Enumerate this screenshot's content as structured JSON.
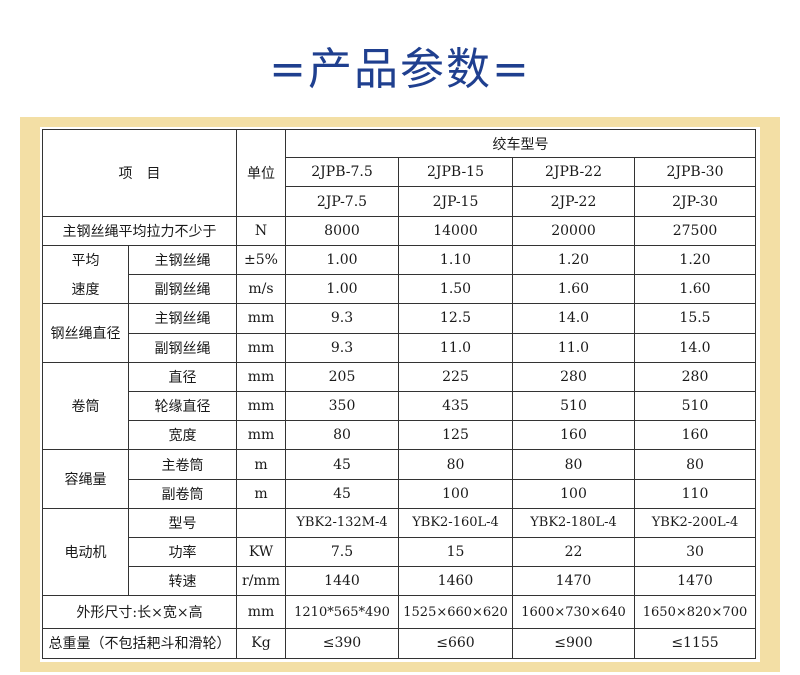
{
  "page": {
    "title": "=产品参数="
  },
  "table": {
    "item_header": "项　目",
    "unit_header": "单位",
    "model_group_header": "绞车型号",
    "models_row1": [
      "2JPB-7.5",
      "2JPB-15",
      "2JPB-22",
      "2JPB-30"
    ],
    "models_row2": [
      "2JP-7.5",
      "2JP-15",
      "2JP-22",
      "2JP-30"
    ],
    "rows": [
      {
        "group": "主钢丝绳平均拉力不少于",
        "sub": "",
        "unit": "N",
        "values": [
          "8000",
          "14000",
          "20000",
          "27500"
        ]
      },
      {
        "group": "平均",
        "sub": "主钢丝绳",
        "unit": "±5%",
        "values": [
          "1.00",
          "1.10",
          "1.20",
          "1.20"
        ]
      },
      {
        "group": "速度",
        "sub": "副钢丝绳",
        "unit": "m/s",
        "values": [
          "1.00",
          "1.50",
          "1.60",
          "1.60"
        ]
      },
      {
        "group": "钢丝绳直径",
        "sub": "主钢丝绳",
        "unit": "mm",
        "values": [
          "9.3",
          "12.5",
          "14.0",
          "15.5"
        ]
      },
      {
        "group": "",
        "sub": "副钢丝绳",
        "unit": "mm",
        "values": [
          "9.3",
          "11.0",
          "11.0",
          "14.0"
        ]
      },
      {
        "group": "卷筒",
        "sub": "直径",
        "unit": "mm",
        "values": [
          "205",
          "225",
          "280",
          "280"
        ]
      },
      {
        "group": "",
        "sub": "轮缘直径",
        "unit": "mm",
        "values": [
          "350",
          "435",
          "510",
          "510"
        ]
      },
      {
        "group": "",
        "sub": "宽度",
        "unit": "mm",
        "values": [
          "80",
          "125",
          "160",
          "160"
        ]
      },
      {
        "group": "容绳量",
        "sub": "主卷筒",
        "unit": "m",
        "values": [
          "45",
          "80",
          "80",
          "80"
        ]
      },
      {
        "group": "",
        "sub": "副卷筒",
        "unit": "m",
        "values": [
          "45",
          "100",
          "100",
          "110"
        ]
      },
      {
        "group": "电动机",
        "sub": "型号",
        "unit": "",
        "values": [
          "YBK2-132M-4",
          "YBK2-160L-4",
          "YBK2-180L-4",
          "YBK2-200L-4"
        ]
      },
      {
        "group": "",
        "sub": "功率",
        "unit": "KW",
        "values": [
          "7.5",
          "15",
          "22",
          "30"
        ]
      },
      {
        "group": "",
        "sub": "转速",
        "unit": "r/mm",
        "values": [
          "1440",
          "1460",
          "1470",
          "1470"
        ]
      },
      {
        "group": "外形尺寸:长×宽×高",
        "sub": "",
        "unit": "mm",
        "values": [
          "1210*565*490",
          "1525×660×620",
          "1600×730×640",
          "1650×820×700"
        ]
      },
      {
        "group": "总重量（不包括耙斗和滑轮）",
        "sub": "",
        "unit": "Kg",
        "values": [
          "≤390",
          "≤660",
          "≤900",
          "≤1155"
        ]
      }
    ]
  }
}
